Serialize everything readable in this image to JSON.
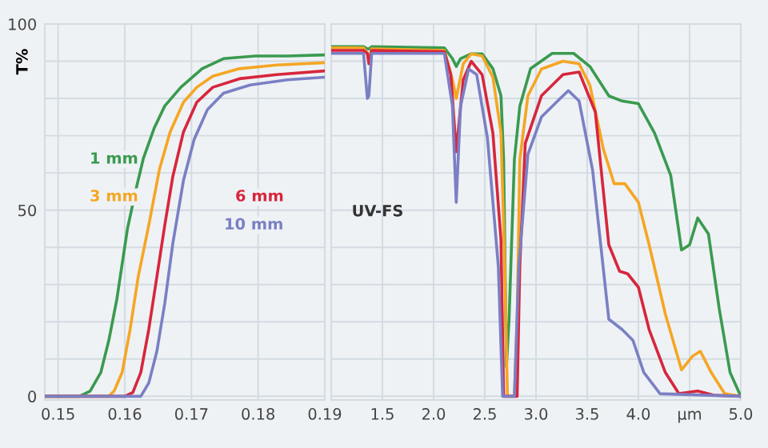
{
  "chart_data": [
    {
      "type": "line",
      "ylabel": "T%",
      "xlim": [
        0.148,
        0.19
      ],
      "xticks": [
        0.15,
        0.16,
        0.17,
        0.18,
        0.19
      ],
      "ylim": [
        -1,
        100
      ],
      "yticks": [
        0,
        {
          "value": 10,
          "label": null
        },
        {
          "value": 20,
          "label": null
        },
        {
          "value": 30,
          "label": null
        },
        {
          "value": 40,
          "label": null
        },
        50,
        {
          "value": 60,
          "label": null
        },
        {
          "value": 70,
          "label": null
        },
        {
          "value": 80,
          "label": null
        },
        {
          "value": 90,
          "label": null
        },
        100
      ],
      "grid": true,
      "marker": "none",
      "line_style": "solid",
      "series": [
        {
          "name": "1 mm",
          "color": "#3a9a4f",
          "x": [
            0.148,
            0.1532,
            0.1548,
            0.1564,
            0.1576,
            0.1588,
            0.1604,
            0.1616,
            0.1628,
            0.1644,
            0.166,
            0.1684,
            0.1716,
            0.1748,
            0.1796,
            0.1844,
            0.19
          ],
          "values": [
            0,
            0,
            1.4,
            6.4,
            15,
            26,
            45,
            55,
            64,
            72,
            78,
            83,
            88,
            90.7,
            91.4,
            91.4,
            91.7
          ]
        },
        {
          "name": "3 mm",
          "color": "#f5a623",
          "x": [
            0.148,
            0.1576,
            0.1584,
            0.1596,
            0.1608,
            0.162,
            0.1636,
            0.1652,
            0.1668,
            0.1688,
            0.1708,
            0.1732,
            0.1772,
            0.1828,
            0.19
          ],
          "values": [
            0,
            0,
            1.4,
            6.4,
            18,
            32,
            46,
            61,
            71,
            79,
            83,
            86,
            88,
            89,
            89.6
          ]
        },
        {
          "name": "6 mm",
          "color": "#d7263d",
          "x": [
            0.148,
            0.16,
            0.1612,
            0.1624,
            0.1636,
            0.1648,
            0.166,
            0.1672,
            0.1688,
            0.1708,
            0.1732,
            0.1772,
            0.1828,
            0.19
          ],
          "values": [
            0,
            0,
            1,
            6.4,
            18,
            32,
            46,
            59,
            71,
            79,
            83,
            85.3,
            86.4,
            87.4
          ]
        },
        {
          "name": "10 mm",
          "color": "#7b7fc4",
          "x": [
            0.148,
            0.1612,
            0.1624,
            0.1636,
            0.1648,
            0.166,
            0.1672,
            0.1688,
            0.1704,
            0.1724,
            0.1748,
            0.1788,
            0.1844,
            0.19
          ],
          "values": [
            0,
            0,
            0,
            3.6,
            12,
            25,
            41,
            58,
            69,
            77,
            81.4,
            83.6,
            85,
            85.7
          ]
        }
      ]
    },
    {
      "type": "line",
      "xlim": [
        1.0,
        5.0
      ],
      "ylim": [
        -1,
        100
      ],
      "tick_labels": "x",
      "xticks": [
        1.5,
        {
          "value": 2,
          "label": "2.0"
        },
        2.5,
        {
          "value": 3,
          "label": "3.0"
        },
        3.5,
        {
          "value": 4,
          "label": "4.0"
        },
        {
          "value": 4.5,
          "label": "μm"
        },
        {
          "value": 5,
          "label": "5.0"
        }
      ],
      "yticks": [
        0,
        10,
        20,
        30,
        40,
        50,
        60,
        70,
        80,
        90,
        100
      ],
      "grid": true,
      "marker": "none",
      "line_style": "solid",
      "annotations": [
        "UV-FS"
      ],
      "series": [
        {
          "color": "#3a9a4f",
          "x": [
            1.0,
            1.316,
            1.353,
            1.368,
            1.395,
            2.105,
            2.184,
            2.221,
            2.263,
            2.368,
            2.474,
            2.579,
            2.658,
            2.684,
            2.711,
            2.737,
            2.789,
            2.842,
            2.947,
            3.158,
            3.368,
            3.526,
            3.711,
            3.842,
            4.0,
            4.158,
            4.316,
            4.421,
            4.5,
            4.579,
            4.684,
            4.789,
            4.895,
            5.0
          ],
          "values": [
            93.9,
            93.9,
            93.3,
            93.3,
            93.9,
            93.6,
            90.7,
            88.6,
            90.7,
            92,
            92,
            88,
            80.7,
            63.6,
            7.9,
            20.7,
            63.6,
            77.9,
            88,
            92.1,
            92.1,
            88.6,
            80.7,
            79.3,
            78.6,
            70.7,
            59.3,
            39.3,
            40.7,
            47.9,
            43.6,
            23.6,
            6.4,
            0
          ]
        },
        {
          "color": "#f5a623",
          "x": [
            1.0,
            1.316,
            1.353,
            1.368,
            1.395,
            2.105,
            2.184,
            2.221,
            2.289,
            2.368,
            2.474,
            2.579,
            2.658,
            2.695,
            2.721,
            2.789,
            2.816,
            2.842,
            2.921,
            3.053,
            3.263,
            3.421,
            3.526,
            3.658,
            3.763,
            3.868,
            4.0,
            4.105,
            4.263,
            4.421,
            4.526,
            4.605,
            4.711,
            4.842,
            5.0
          ],
          "values": [
            93.6,
            93.6,
            92.1,
            90.7,
            93.3,
            92.9,
            85,
            80,
            89.3,
            92,
            91.4,
            85.7,
            70.7,
            35,
            0,
            0,
            20.7,
            63.6,
            80.7,
            87.9,
            90,
            89.3,
            83.6,
            66.4,
            57.1,
            57.1,
            52.1,
            40.7,
            22.1,
            7.1,
            10.7,
            12.1,
            6.4,
            0.7,
            0
          ]
        },
        {
          "color": "#d7263d",
          "x": [
            1.0,
            1.316,
            1.353,
            1.368,
            1.395,
            2.105,
            2.168,
            2.221,
            2.289,
            2.368,
            2.474,
            2.579,
            2.658,
            2.684,
            2.816,
            2.842,
            2.895,
            3.053,
            3.263,
            3.421,
            3.579,
            3.711,
            3.816,
            3.895,
            4.0,
            4.105,
            4.263,
            4.395,
            4.579,
            4.737,
            5.0
          ],
          "values": [
            92.9,
            92.9,
            92.1,
            89.3,
            92.9,
            92.6,
            86.4,
            65.7,
            85,
            90,
            86.4,
            70.7,
            42,
            0,
            0,
            35,
            67.9,
            80.7,
            86.4,
            87.1,
            76.4,
            40.7,
            33.6,
            32.9,
            29.3,
            17.9,
            6.4,
            0.7,
            1.4,
            0.3,
            0
          ]
        },
        {
          "color": "#7b7fc4",
          "x": [
            1.0,
            1.316,
            1.353,
            1.368,
            1.395,
            2.105,
            2.184,
            2.221,
            2.263,
            2.342,
            2.421,
            2.526,
            2.632,
            2.674,
            2.789,
            2.832,
            2.921,
            3.053,
            3.211,
            3.316,
            3.421,
            3.553,
            3.711,
            3.842,
            3.947,
            4.053,
            4.211,
            5.0
          ],
          "values": [
            92.1,
            92.1,
            80,
            80.7,
            92.1,
            92.1,
            77.9,
            52.1,
            77.9,
            87.9,
            86.4,
            69.3,
            35,
            0,
            0,
            35,
            65,
            75,
            79.3,
            82.1,
            79.3,
            60.7,
            20.7,
            17.9,
            15,
            6.4,
            0.7,
            0
          ]
        }
      ]
    }
  ]
}
